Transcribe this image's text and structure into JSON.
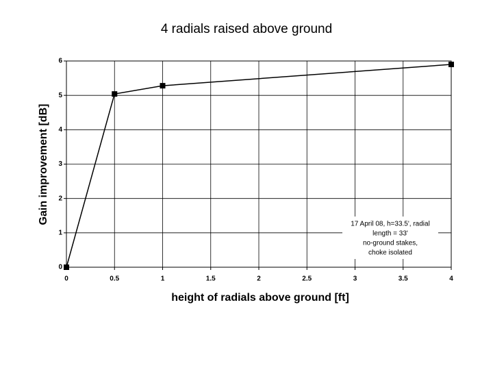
{
  "chart_data": {
    "type": "line",
    "title": "4 radials raised above ground",
    "x_label": "height of radials above ground [ft]",
    "y_label": "Gain improvement [dB]",
    "x": [
      0,
      0.5,
      1,
      4
    ],
    "series": [
      {
        "name": "gain",
        "color": "#000000",
        "values": [
          0,
          5.04,
          5.28,
          5.9
        ]
      }
    ],
    "xlim": [
      0,
      4
    ],
    "xticks": [
      0,
      0.5,
      1,
      1.5,
      2,
      2.5,
      3,
      3.5,
      4
    ],
    "ylim": [
      0,
      6
    ],
    "yticks": [
      0,
      1,
      2,
      3,
      4,
      5,
      6
    ],
    "grid": true,
    "annotation": [
      "17 April 08, h=33.5', radial",
      "length = 33'",
      "no-ground stakes,",
      "choke isolated"
    ]
  }
}
